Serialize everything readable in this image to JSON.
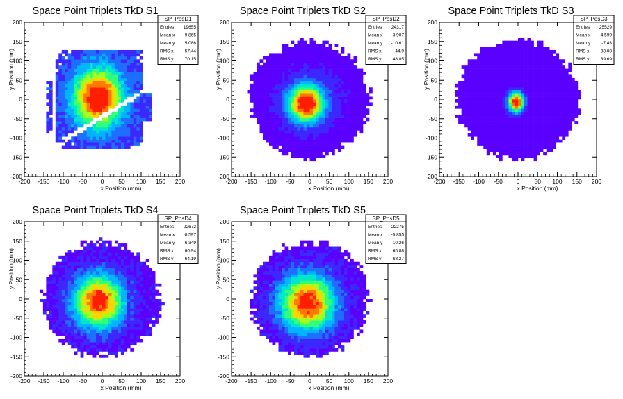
{
  "chart_data": [
    {
      "type": "heatmap",
      "title": "Space Point Triplets TkD S1",
      "xlabel": "x Position (mm)",
      "ylabel": "y Position (mm)",
      "xlim": [
        -200,
        200
      ],
      "ylim": [
        -200,
        200
      ],
      "xticks": [
        "-200",
        "-150",
        "-100",
        "-50",
        "0",
        "50",
        "100",
        "150",
        "200"
      ],
      "yticks": [
        "-200",
        "-150",
        "-100",
        "-50",
        "0",
        "50",
        "100",
        "150",
        "200"
      ],
      "stats": {
        "name": "SP_PosD1",
        "rows": [
          {
            "label": "Entries",
            "value": "19655"
          },
          {
            "label": "Mean x",
            "value": "-9.865"
          },
          {
            "label": "Mean y",
            "value": "5.086"
          },
          {
            "label": "RMS x",
            "value": "57.44"
          },
          {
            "label": "RMS y",
            "value": "70.15"
          }
        ]
      },
      "mean": [
        -10,
        5
      ],
      "rms": [
        57,
        70
      ],
      "radius": 150,
      "shape": "station1"
    },
    {
      "type": "heatmap",
      "title": "Space Point Triplets TkD S2",
      "xlabel": "x Position (mm)",
      "ylabel": "y Position (mm)",
      "xlim": [
        -200,
        200
      ],
      "ylim": [
        -200,
        200
      ],
      "xticks": [
        "-200",
        "-150",
        "-100",
        "-50",
        "0",
        "50",
        "100",
        "150",
        "200"
      ],
      "yticks": [
        "-200",
        "-150",
        "-100",
        "-50",
        "0",
        "50",
        "100",
        "150",
        "200"
      ],
      "stats": {
        "name": "SP_PosD2",
        "rows": [
          {
            "label": "Entries",
            "value": "24317"
          },
          {
            "label": "Mean x",
            "value": "-3.907"
          },
          {
            "label": "Mean y",
            "value": "-10.61"
          },
          {
            "label": "RMS x",
            "value": "44.9"
          },
          {
            "label": "RMS y",
            "value": "48.85"
          }
        ]
      },
      "mean": [
        -4,
        -11
      ],
      "rms": [
        45,
        49
      ],
      "radius": 155,
      "shape": "station2"
    },
    {
      "type": "heatmap",
      "title": "Space Point Triplets TkD S3",
      "xlabel": "x Position (mm)",
      "ylabel": "y Position (mm)",
      "xlim": [
        -200,
        200
      ],
      "ylim": [
        -200,
        200
      ],
      "xticks": [
        "-200",
        "-150",
        "-100",
        "-50",
        "0",
        "50",
        "100",
        "150",
        "200"
      ],
      "yticks": [
        "-200",
        "-150",
        "-100",
        "-50",
        "0",
        "50",
        "100",
        "150",
        "200"
      ],
      "stats": {
        "name": "SP_PosD3",
        "rows": [
          {
            "label": "Entries",
            "value": "25529"
          },
          {
            "label": "Mean x",
            "value": "-4.599"
          },
          {
            "label": "Mean y",
            "value": "-7.43"
          },
          {
            "label": "RMS x",
            "value": "38.08"
          },
          {
            "label": "RMS y",
            "value": "39.69"
          }
        ]
      },
      "mean": [
        -5,
        -7
      ],
      "rms": [
        38,
        40
      ],
      "radius": 158,
      "shape": "station3"
    },
    {
      "type": "heatmap",
      "title": "Space Point Triplets TkD S4",
      "xlabel": "x Position (mm)",
      "ylabel": "y Position (mm)",
      "xlim": [
        -200,
        200
      ],
      "ylim": [
        -200,
        200
      ],
      "xticks": [
        "-200",
        "-150",
        "-100",
        "-50",
        "0",
        "50",
        "100",
        "150",
        "200"
      ],
      "yticks": [
        "-200",
        "-150",
        "-100",
        "-50",
        "0",
        "50",
        "100",
        "150",
        "200"
      ],
      "stats": {
        "name": "SP_PosD4",
        "rows": [
          {
            "label": "Entries",
            "value": "22672"
          },
          {
            "label": "Mean x",
            "value": "-8.597"
          },
          {
            "label": "Mean y",
            "value": "-6.349"
          },
          {
            "label": "RMS x",
            "value": "60.94"
          },
          {
            "label": "RMS y",
            "value": "64.19"
          }
        ]
      },
      "mean": [
        -9,
        -6
      ],
      "rms": [
        61,
        64
      ],
      "radius": 152,
      "shape": "station4"
    },
    {
      "type": "heatmap",
      "title": "Space Point Triplets TkD S5",
      "xlabel": "x Position (mm)",
      "ylabel": "y Position (mm)",
      "xlim": [
        -200,
        200
      ],
      "ylim": [
        -200,
        200
      ],
      "xticks": [
        "-200",
        "-150",
        "-100",
        "-50",
        "0",
        "50",
        "100",
        "150",
        "200"
      ],
      "yticks": [
        "-200",
        "-150",
        "-100",
        "-50",
        "0",
        "50",
        "100",
        "150",
        "200"
      ],
      "stats": {
        "name": "SP_PosD5",
        "rows": [
          {
            "label": "Entries",
            "value": "22275"
          },
          {
            "label": "Mean x",
            "value": "-5.855"
          },
          {
            "label": "Mean y",
            "value": "-10.26"
          },
          {
            "label": "RMS x",
            "value": "65.88"
          },
          {
            "label": "RMS y",
            "value": "68.27"
          }
        ]
      },
      "mean": [
        -6,
        -10
      ],
      "rms": [
        66,
        68
      ],
      "radius": 152,
      "shape": "station5"
    }
  ],
  "colors": {
    "palette": [
      "#5a00ff",
      "#3c28ff",
      "#1e6eff",
      "#00b4ff",
      "#00e6c8",
      "#32ff78",
      "#a0ff1e",
      "#ffd200",
      "#ff7800",
      "#ff1e00"
    ],
    "axis": "#000000",
    "background": "#ffffff"
  }
}
